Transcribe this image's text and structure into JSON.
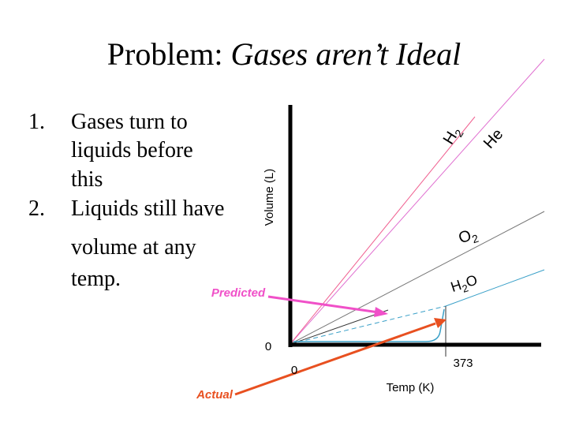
{
  "title": {
    "prefix": "Problem: ",
    "emphasis": "Gases aren’t Ideal"
  },
  "list": [
    {
      "marker": "1.",
      "lines": [
        "Gases turn to",
        "liquids before",
        "this"
      ]
    },
    {
      "marker": "2.",
      "lines": [
        "Liquids still have",
        "volume at any",
        "temp."
      ]
    }
  ],
  "graph": {
    "y_axis_label": "Volume (L)",
    "x_axis_label": "Temp (K)",
    "y_origin_label": "0",
    "x_origin_label": "0",
    "boiling_label": "373",
    "predicted_label": "Predicted",
    "actual_label": "Actual",
    "line_labels": {
      "he": "He",
      "h2": {
        "base": "H",
        "sub": "2"
      },
      "o2": {
        "base": "O",
        "sub": "2"
      },
      "h2o": {
        "base": "H",
        "sub": "2",
        "tail": "O"
      }
    }
  }
}
